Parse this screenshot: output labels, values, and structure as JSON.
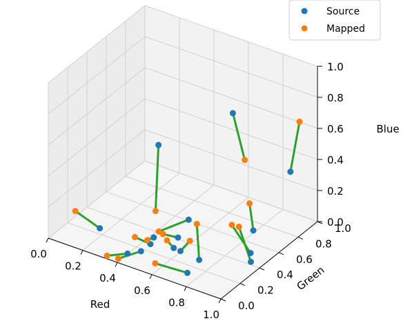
{
  "chart_data": {
    "type": "scatter",
    "projection": "3d",
    "xlabel": "Red",
    "ylabel": "Green",
    "zlabel": "Blue",
    "xlim": [
      0,
      1
    ],
    "ylim": [
      0,
      1
    ],
    "zlim": [
      0,
      1
    ],
    "x_ticks": [
      "0.0",
      "0.2",
      "0.4",
      "0.6",
      "0.8",
      "1.0"
    ],
    "y_ticks": [
      "0.0",
      "0.2",
      "0.4",
      "0.6",
      "0.8",
      "1.0"
    ],
    "z_ticks": [
      "0.0",
      "0.2",
      "0.4",
      "0.6",
      "0.8",
      "1.0"
    ],
    "grid": true,
    "legend_position": "top-right",
    "colors": {
      "source": "#1f77b4",
      "mapped": "#ff7f0e",
      "line": "#2ca02c",
      "grid": "#d0d0d0",
      "pane": "#f2f2f2"
    },
    "series": [
      {
        "name": "Source"
      },
      {
        "name": "Mapped"
      }
    ],
    "pairs": [
      {
        "source": [
          0.22,
          0.14,
          0.08
        ],
        "mapped": [
          0.05,
          0.19,
          0.1
        ]
      },
      {
        "source": [
          0.42,
          0.39,
          0.57
        ],
        "mapped": [
          0.42,
          0.36,
          0.16
        ]
      },
      {
        "source": [
          0.7,
          0.66,
          0.75
        ],
        "mapped": [
          0.78,
          0.64,
          0.49
        ]
      },
      {
        "source": [
          1.0,
          0.72,
          0.46
        ],
        "mapped": [
          0.98,
          0.85,
          0.71
        ]
      },
      {
        "source": [
          0.88,
          0.55,
          0.12
        ],
        "mapped": [
          0.83,
          0.6,
          0.25
        ]
      },
      {
        "source": [
          0.92,
          0.45,
          0.04
        ],
        "mapped": [
          0.75,
          0.56,
          0.1
        ]
      },
      {
        "source": [
          0.95,
          0.4,
          0.02
        ],
        "mapped": [
          0.78,
          0.58,
          0.09
        ]
      },
      {
        "source": [
          0.74,
          0.24,
          0.03
        ],
        "mapped": [
          0.62,
          0.43,
          0.12
        ]
      },
      {
        "source": [
          0.75,
          0.1,
          0.02
        ],
        "mapped": [
          0.58,
          0.07,
          0.03
        ]
      },
      {
        "source": [
          0.55,
          0.47,
          0.1
        ],
        "mapped": [
          0.45,
          0.34,
          0.05
        ]
      },
      {
        "source": [
          0.46,
          0.27,
          0.05
        ],
        "mapped": [
          0.44,
          0.24,
          0.04
        ]
      },
      {
        "source": [
          0.55,
          0.36,
          0.04
        ],
        "mapped": [
          0.48,
          0.33,
          0.05
        ]
      },
      {
        "source": [
          0.57,
          0.28,
          0.02
        ],
        "mapped": [
          0.52,
          0.3,
          0.04
        ]
      },
      {
        "source": [
          0.62,
          0.26,
          0.03
        ],
        "mapped": [
          0.63,
          0.34,
          0.06
        ]
      },
      {
        "source": [
          0.42,
          0.07,
          0.03
        ],
        "mapped": [
          0.34,
          0.0,
          0.02
        ]
      },
      {
        "source": [
          0.47,
          0.12,
          0.04
        ],
        "mapped": [
          0.4,
          0.01,
          0.02
        ]
      },
      {
        "source": [
          0.48,
          0.2,
          0.05
        ],
        "mapped": [
          0.39,
          0.2,
          0.06
        ]
      }
    ]
  }
}
